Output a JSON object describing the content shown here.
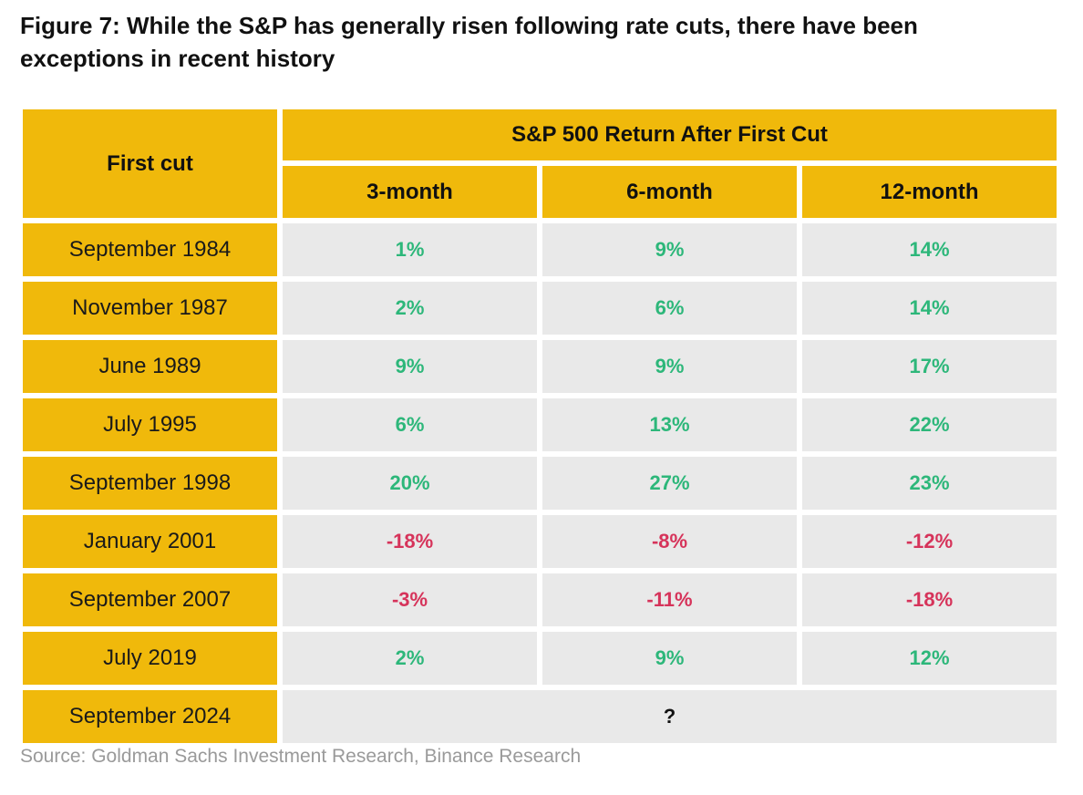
{
  "title": "Figure 7: While the S&P has generally risen following rate cuts, there have been exceptions in recent history",
  "source": "Source: Goldman Sachs Investment Research, Binance Research",
  "colors": {
    "header_bg": "#f0b90b",
    "cell_bg": "#e9e9e9",
    "positive": "#2db77a",
    "negative": "#d6335a"
  },
  "chart_data": {
    "type": "table",
    "title": "Figure 7: While the S&P has generally risen following rate cuts, there have been exceptions in recent history",
    "row_header": "First cut",
    "group_header": "S&P 500 Return After First Cut",
    "columns": [
      "3-month",
      "6-month",
      "12-month"
    ],
    "rows": [
      {
        "label": "September 1984",
        "values": [
          "1%",
          "9%",
          "14%"
        ]
      },
      {
        "label": "November 1987",
        "values": [
          "2%",
          "6%",
          "14%"
        ]
      },
      {
        "label": "June 1989",
        "values": [
          "9%",
          "9%",
          "17%"
        ]
      },
      {
        "label": "July 1995",
        "values": [
          "6%",
          "13%",
          "22%"
        ]
      },
      {
        "label": "September 1998",
        "values": [
          "20%",
          "27%",
          "23%"
        ]
      },
      {
        "label": "January 2001",
        "values": [
          "-18%",
          "-8%",
          "-12%"
        ]
      },
      {
        "label": "September 2007",
        "values": [
          "-3%",
          "-11%",
          "-18%"
        ]
      },
      {
        "label": "July 2019",
        "values": [
          "2%",
          "9%",
          "12%"
        ]
      }
    ],
    "pending_row": {
      "label": "September 2024",
      "value": "?"
    }
  }
}
